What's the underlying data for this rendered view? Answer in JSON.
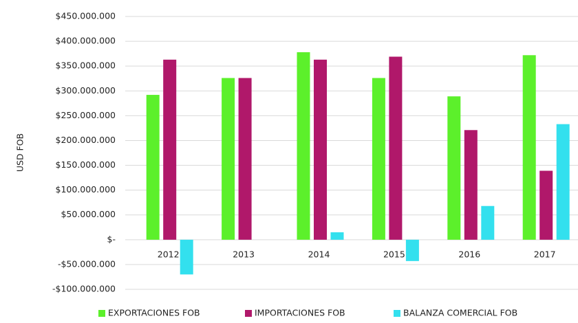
{
  "chart_data": {
    "type": "bar",
    "y_label": "USD FOB",
    "categories": [
      "2012",
      "2013",
      "2014",
      "2015",
      "2016",
      "2017"
    ],
    "series": [
      {
        "name": "EXPORTACIONES FOB",
        "color": "#5cf02b",
        "values": [
          292000000,
          326000000,
          378000000,
          326000000,
          289000000,
          372000000
        ]
      },
      {
        "name": "IMPORTACIONES FOB",
        "color": "#b0186a",
        "values": [
          363000000,
          326000000,
          363000000,
          369000000,
          221000000,
          139000000
        ]
      },
      {
        "name": "BALANZA COMERCIAL FOB",
        "color": "#33e0ee",
        "values": [
          -70000000,
          0,
          15000000,
          -43000000,
          68000000,
          233000000
        ]
      }
    ],
    "ylim": [
      -100000000,
      450000000
    ],
    "yticks": [
      {
        "value": -100000000,
        "label": "-$100.000.000"
      },
      {
        "value": -50000000,
        "label": "-$50.000.000"
      },
      {
        "value": 0,
        "label": "$-"
      },
      {
        "value": 50000000,
        "label": "$50.000.000"
      },
      {
        "value": 100000000,
        "label": "$100.000.000"
      },
      {
        "value": 150000000,
        "label": "$150.000.000"
      },
      {
        "value": 200000000,
        "label": "$200.000.000"
      },
      {
        "value": 250000000,
        "label": "$250.000.000"
      },
      {
        "value": 300000000,
        "label": "$300.000.000"
      },
      {
        "value": 350000000,
        "label": "$350.000.000"
      },
      {
        "value": 400000000,
        "label": "$400.000.000"
      },
      {
        "value": 450000000,
        "label": "$450.000.000"
      }
    ],
    "grid": true,
    "legend": "bottom"
  }
}
